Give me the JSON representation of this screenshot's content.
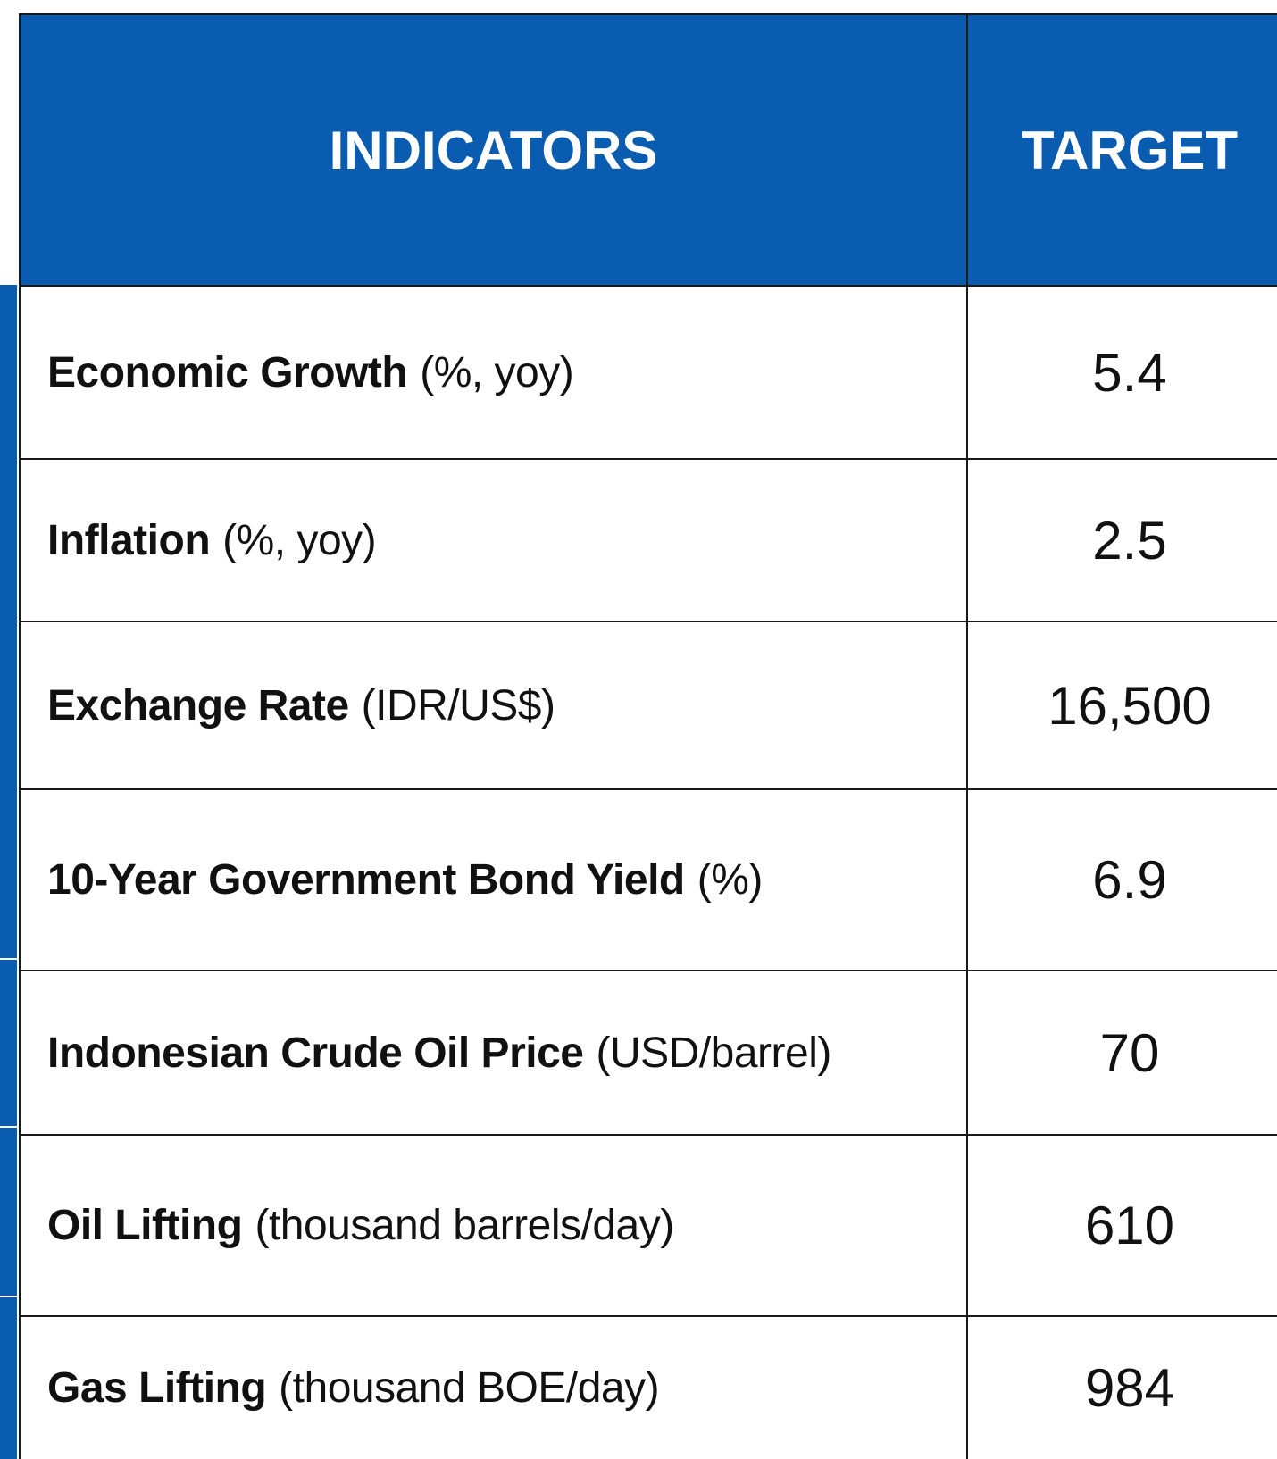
{
  "table": {
    "headers": [
      "INDICATORS",
      "TARGET"
    ],
    "rows": [
      {
        "name": "Economic Growth",
        "unit": "(%, yoy)",
        "target": "5.4"
      },
      {
        "name": "Inflation",
        "unit": "(%, yoy)",
        "target": "2.5"
      },
      {
        "name": "Exchange Rate",
        "unit": "(IDR/US$)",
        "target": "16,500"
      },
      {
        "name": "10-Year Government Bond Yield",
        "unit": "(%)",
        "target": "6.9"
      },
      {
        "name": "Indonesian Crude Oil Price",
        "unit": "(USD/barrel)",
        "target": "70"
      },
      {
        "name": "Oil Lifting",
        "unit": "(thousand barrels/day)",
        "target": "610"
      },
      {
        "name": "Gas Lifting",
        "unit": "(thousand BOE/day)",
        "target": "984"
      }
    ]
  }
}
